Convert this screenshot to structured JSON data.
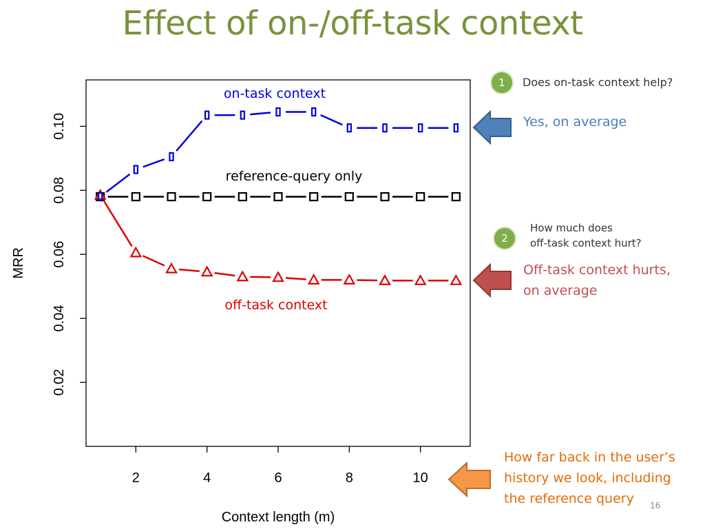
{
  "slide": {
    "title": "Effect of on-/off-task context",
    "page_number": "16"
  },
  "callouts": {
    "q1": {
      "number": "1",
      "text": "Does on-task context help?"
    },
    "a1": {
      "text": "Yes, on average",
      "color": "#4a7cc0"
    },
    "q2": {
      "number": "2",
      "line1": "How much does",
      "line2": "off-task context hurt?"
    },
    "a2": {
      "line1": "Off-task context hurts,",
      "line2": "on average",
      "color": "#c0504d"
    },
    "a3": {
      "line1": "How far back in the user’s",
      "line2": "history we look, including",
      "line3": "the reference query",
      "color": "#e36c09"
    }
  },
  "chart_data": {
    "type": "line",
    "title": "",
    "xlabel": "Context length (m)",
    "ylabel": "MRR",
    "xlim": [
      0.6,
      11.4
    ],
    "ylim": [
      0.0,
      0.1145
    ],
    "x_ticks": [
      "2",
      "4",
      "6",
      "8",
      "10"
    ],
    "y_ticks": [
      "0.02",
      "0.04",
      "0.06",
      "0.08",
      "0.10"
    ],
    "x": [
      1,
      2,
      3,
      4,
      5,
      6,
      7,
      8,
      9,
      10,
      11
    ],
    "series": [
      {
        "name": "on-task context",
        "color": "#0000dd",
        "marker": "bar",
        "values": [
          0.078,
          0.0865,
          0.0905,
          0.1035,
          0.1035,
          0.1045,
          0.1045,
          0.0995,
          0.0995,
          0.0995,
          0.0995
        ]
      },
      {
        "name": "reference-query only",
        "color": "#000000",
        "marker": "square",
        "values": [
          0.078,
          0.078,
          0.078,
          0.078,
          0.078,
          0.078,
          0.078,
          0.078,
          0.078,
          0.078,
          0.078
        ]
      },
      {
        "name": "off-task context",
        "color": "#dd0000",
        "marker": "triangle",
        "values": [
          0.0785,
          0.0605,
          0.0555,
          0.0545,
          0.053,
          0.0528,
          0.052,
          0.052,
          0.0518,
          0.0518,
          0.0518
        ]
      }
    ],
    "grid": false
  }
}
